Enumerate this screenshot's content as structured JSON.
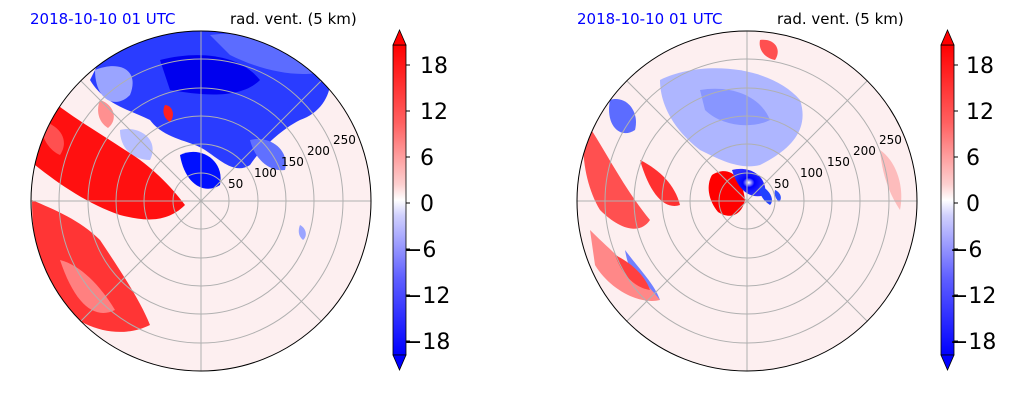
{
  "chart_data": [
    {
      "type": "heatmap",
      "projection": "polar",
      "date": "2018-10-10 01 UTC",
      "title": "rad. vent. (5 km)",
      "radial_ticks": [
        "50",
        "100",
        "150",
        "200",
        "250"
      ],
      "colorbar": {
        "ticks": [
          "18",
          "12",
          "6",
          "0",
          "−6",
          "−12",
          "−18"
        ],
        "range": [
          -20,
          20
        ],
        "extend": "both",
        "colormap": "bwr"
      },
      "features": [
        {
          "label": "strong outbound band",
          "sign": "positive",
          "value": 18,
          "sector_deg": [
            150,
            215
          ],
          "radius_km": [
            20,
            270
          ]
        },
        {
          "label": "broad inbound region",
          "sign": "negative",
          "value": -18,
          "sector_deg": [
            40,
            120
          ],
          "radius_km": [
            60,
            260
          ]
        }
      ]
    },
    {
      "type": "heatmap",
      "projection": "polar",
      "date": "2018-10-10 01 UTC",
      "title": "rad. vent. (5 km)",
      "radial_ticks": [
        "50",
        "100",
        "150",
        "200",
        "250"
      ],
      "colorbar": {
        "ticks": [
          "18",
          "12",
          "6",
          "0",
          "−6",
          "−12",
          "−18"
        ],
        "range": [
          -20,
          20
        ],
        "extend": "both",
        "colormap": "bwr"
      },
      "features": [
        {
          "label": "vortex dipole near center",
          "sign": "mixed",
          "value": 18,
          "sector_deg": [
            0,
            360
          ],
          "radius_km": [
            0,
            35
          ]
        },
        {
          "label": "weak inbound region",
          "sign": "negative",
          "value": -6,
          "sector_deg": [
            70,
            140
          ],
          "radius_km": [
            40,
            200
          ]
        },
        {
          "label": "outbound streaks",
          "sign": "positive",
          "value": 12,
          "sector_deg": [
            140,
            220
          ],
          "radius_km": [
            120,
            270
          ]
        }
      ]
    }
  ],
  "colors": {
    "date_text": "#0000ff",
    "grid": "#b0b0b0",
    "background_tint": "#fdeff0"
  }
}
